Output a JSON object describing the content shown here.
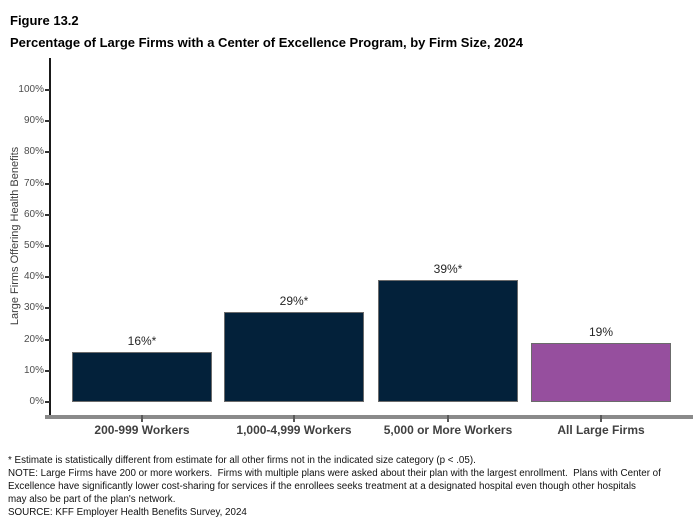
{
  "figure": {
    "label": "Figure 13.2",
    "title": "Percentage of Large Firms with a Center of Excellence Program, by Firm Size, 2024"
  },
  "chart_data": {
    "type": "bar",
    "title": "Percentage of Large Firms with a Center of Excellence Program, by Firm Size, 2024",
    "categories": [
      "200-999 Workers",
      "1,000-4,999 Workers",
      "5,000 or More Workers",
      "All Large Firms"
    ],
    "values": [
      16,
      29,
      39,
      19
    ],
    "bar_labels": [
      "16%*",
      "29%%*",
      "39%*",
      "19%"
    ],
    "bar_labels_display": [
      "16%*",
      "29%*",
      "39%*",
      "19%"
    ],
    "bar_colors": [
      "#03213a",
      "#03213a",
      "#03213a",
      "#964f9e"
    ],
    "xlabel": "",
    "ylabel": "Large Firms Offering Health Benefits",
    "ylim": [
      0,
      100
    ],
    "ytick_labels": [
      "0%",
      "10%",
      "20%",
      "30%",
      "40%",
      "50%",
      "60%",
      "70%",
      "80%",
      "90%",
      "100%"
    ],
    "grid": false,
    "legend_position": "none"
  },
  "colors": {
    "navy": "#03213a",
    "purple": "#964f9e",
    "axis_line_gray": "#8a8a8a",
    "bar_border_gray": "#6b6b6b"
  },
  "footnotes": {
    "lines": [
      "* Estimate is statistically different from estimate for all other firms not in the indicated size category (p < .05).",
      "NOTE: Large Firms have 200 or more workers.  Firms with multiple plans were asked about their plan with the largest enrollment.  Plans with Center of",
      "Excellence have significantly lower cost-sharing for services if the enrollees seeks treatment at a designated hospital even though other hospitals",
      "may also be part of the plan's network.",
      "SOURCE: KFF Employer Health Benefits Survey, 2024"
    ]
  }
}
